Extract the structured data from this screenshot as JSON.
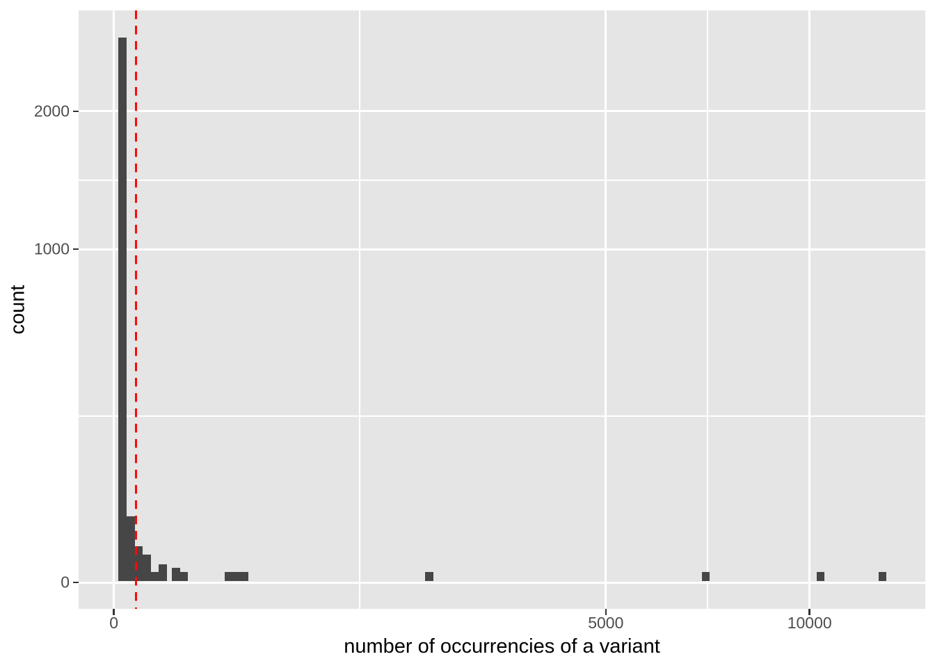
{
  "chart_data": {
    "type": "histogram",
    "title": "",
    "xlabel": "number of occurrencies of a variant",
    "ylabel": "count",
    "x_scale": "sqrt",
    "y_scale": "sqrt",
    "x_ticks": [
      {
        "value": 0,
        "label": "0"
      },
      {
        "value": 5000,
        "label": "5000"
      },
      {
        "value": 10000,
        "label": "10000"
      }
    ],
    "y_ticks": [
      {
        "value": 0,
        "label": "0"
      },
      {
        "value": 1000,
        "label": "1000"
      },
      {
        "value": 2000,
        "label": "2000"
      }
    ],
    "x_minor_gridlines": [
      1250,
      7286
    ],
    "y_minor_gridlines": [
      250,
      1457
    ],
    "xlim_sqrt_units": [
      -5.07,
      116.63
    ],
    "ylim_sqrt_units": [
      -2.51,
      54.29
    ],
    "grid": true,
    "legend": "none",
    "bins": [
      {
        "x0": 0.4,
        "x1": 3.4,
        "count": 2675
      },
      {
        "x0": 3.4,
        "x1": 8.9,
        "count": 39
      },
      {
        "x0": 8.9,
        "x1": 17,
        "count": 12
      },
      {
        "x0": 17,
        "x1": 28,
        "count": 7
      },
      {
        "x0": 28,
        "x1": 41,
        "count": 1
      },
      {
        "x0": 41,
        "x1": 58,
        "count": 3
      },
      {
        "x0": 70,
        "x1": 90,
        "count": 2
      },
      {
        "x0": 90,
        "x1": 113,
        "count": 1
      },
      {
        "x0": 255,
        "x1": 372,
        "count": 1
      },
      {
        "x0": 2000,
        "x1": 2110,
        "count": 1
      },
      {
        "x0": 7140,
        "x1": 7330,
        "count": 1
      },
      {
        "x0": 10210,
        "x1": 10440,
        "count": 1
      },
      {
        "x0": 12090,
        "x1": 12330,
        "count": 1
      }
    ],
    "vline": {
      "x": 10,
      "style": "dashed",
      "color": "#F90A0A"
    },
    "colors": {
      "background": "#FFFFFF",
      "panel": "#E5E5E5",
      "grid": "#FFFFFF",
      "bar": "#464646",
      "vline": "#F90A0A",
      "tick_label": "#4D4D4D",
      "axis_title": "#000000",
      "tick_mark": "#333333"
    }
  }
}
